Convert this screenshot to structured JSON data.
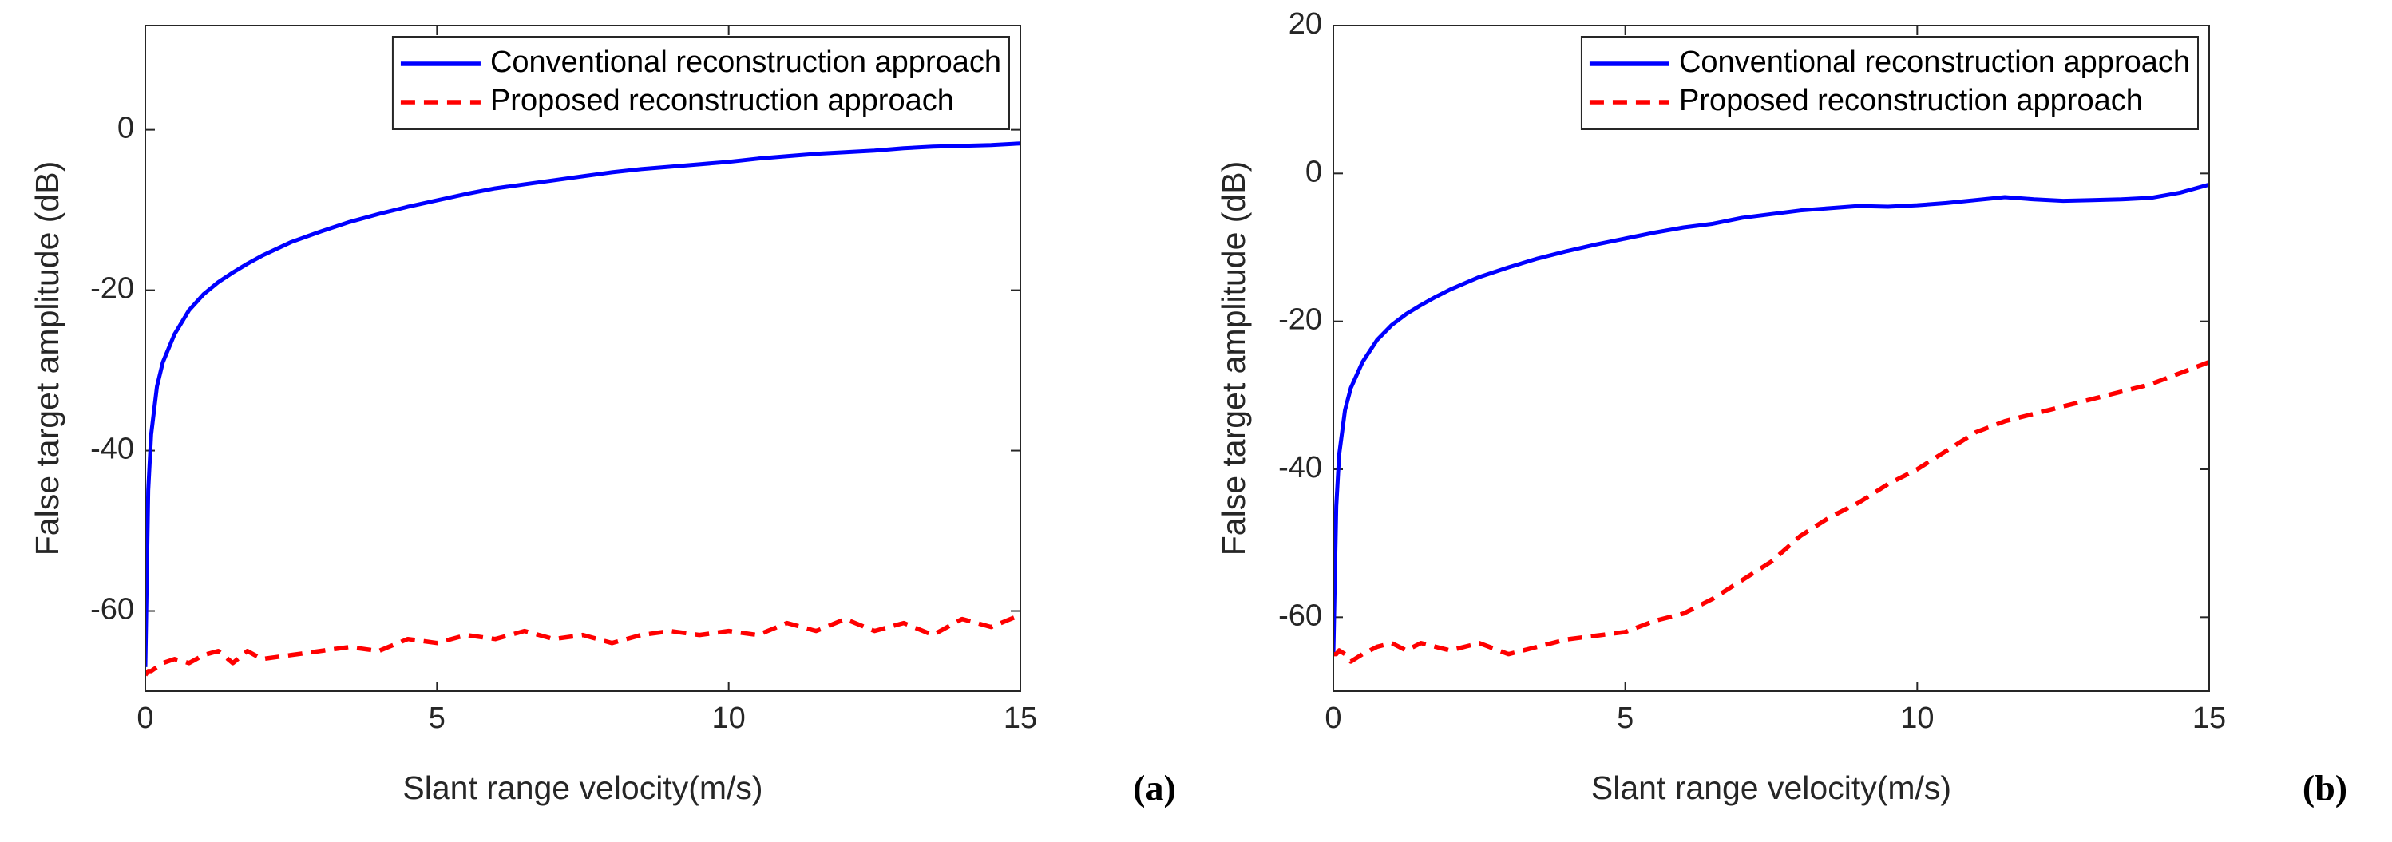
{
  "chart_data": [
    {
      "type": "line",
      "panel_label": "(a)",
      "x_label": "Slant range velocity(m/s)",
      "y_label": "False target amplitude (dB)",
      "xlim": [
        0,
        15
      ],
      "xticks": [
        0,
        5,
        10,
        15
      ],
      "ylim": [
        -70,
        13
      ],
      "yticks": [
        -60,
        -40,
        -20,
        0
      ],
      "legend": "upper right",
      "x": [
        0,
        0.05,
        0.1,
        0.2,
        0.3,
        0.5,
        0.75,
        1,
        1.25,
        1.5,
        1.75,
        2,
        2.5,
        3,
        3.5,
        4,
        4.5,
        5,
        5.5,
        6,
        6.5,
        7,
        7.5,
        8,
        8.5,
        9,
        9.5,
        10,
        10.5,
        11,
        11.5,
        12,
        12.5,
        13,
        13.5,
        14,
        14.5,
        15
      ],
      "series": [
        {
          "name": "Conventional reconstruction approach",
          "color": "#0000ff",
          "linestyle": "solid",
          "values": [
            -67,
            -45,
            -38,
            -32,
            -29,
            -25.5,
            -22.5,
            -20.5,
            -19,
            -17.8,
            -16.7,
            -15.7,
            -14,
            -12.7,
            -11.5,
            -10.5,
            -9.6,
            -8.8,
            -8,
            -7.3,
            -6.8,
            -6.3,
            -5.8,
            -5.3,
            -4.9,
            -4.6,
            -4.3,
            -4,
            -3.6,
            -3.3,
            -3,
            -2.8,
            -2.6,
            -2.3,
            -2.1,
            -2,
            -1.9,
            -1.7
          ]
        },
        {
          "name": "Proposed reconstruction approach",
          "color": "#ff0000",
          "linestyle": "dashed",
          "values": [
            -68,
            -67.5,
            -67.5,
            -67,
            -66.5,
            -66,
            -66.5,
            -65.5,
            -65,
            -66.5,
            -65,
            -66,
            -65.5,
            -65,
            -64.5,
            -65,
            -63.5,
            -64,
            -63,
            -63.5,
            -62.5,
            -63.5,
            -63,
            -64,
            -63,
            -62.5,
            -63,
            -62.5,
            -63,
            -61.5,
            -62.5,
            -61,
            -62.5,
            -61.5,
            -63,
            -61,
            -62,
            -60.5
          ]
        }
      ]
    },
    {
      "type": "line",
      "panel_label": "(b)",
      "x_label": "Slant range velocity(m/s)",
      "y_label": "False target amplitude (dB)",
      "xlim": [
        0,
        15
      ],
      "xticks": [
        0,
        5,
        10,
        15
      ],
      "ylim": [
        -70,
        20
      ],
      "yticks": [
        -60,
        -40,
        -20,
        0,
        20
      ],
      "legend": "upper right",
      "x": [
        0,
        0.05,
        0.1,
        0.2,
        0.3,
        0.5,
        0.75,
        1,
        1.25,
        1.5,
        1.75,
        2,
        2.5,
        3,
        3.5,
        4,
        4.5,
        5,
        5.5,
        6,
        6.5,
        7,
        7.5,
        8,
        8.5,
        9,
        9.5,
        10,
        10.5,
        11,
        11.5,
        12,
        12.5,
        13,
        13.5,
        14,
        14.5,
        15
      ],
      "series": [
        {
          "name": "Conventional reconstruction approach",
          "color": "#0000ff",
          "linestyle": "solid",
          "values": [
            -65,
            -45,
            -38,
            -32,
            -29,
            -25.5,
            -22.5,
            -20.5,
            -19,
            -17.8,
            -16.7,
            -15.7,
            -14,
            -12.7,
            -11.5,
            -10.5,
            -9.6,
            -8.8,
            -8,
            -7.3,
            -6.8,
            -6,
            -5.5,
            -5,
            -4.7,
            -4.4,
            -4.5,
            -4.3,
            -4,
            -3.6,
            -3.2,
            -3.5,
            -3.7,
            -3.6,
            -3.5,
            -3.3,
            -2.6,
            -1.5
          ]
        },
        {
          "name": "Proposed reconstruction approach",
          "color": "#ff0000",
          "linestyle": "dashed",
          "values": [
            -65,
            -65,
            -64.5,
            -65,
            -66,
            -65,
            -64,
            -63.5,
            -64.5,
            -63.5,
            -64,
            -64.5,
            -63.5,
            -65,
            -64,
            -63,
            -62.5,
            -62,
            -60.5,
            -59.5,
            -57.5,
            -55,
            -52.5,
            -49,
            -46.5,
            -44.5,
            -42,
            -40,
            -37.5,
            -35,
            -33.5,
            -32.5,
            -31.5,
            -30.5,
            -29.5,
            -28.5,
            -27,
            -25.5
          ]
        }
      ]
    }
  ]
}
